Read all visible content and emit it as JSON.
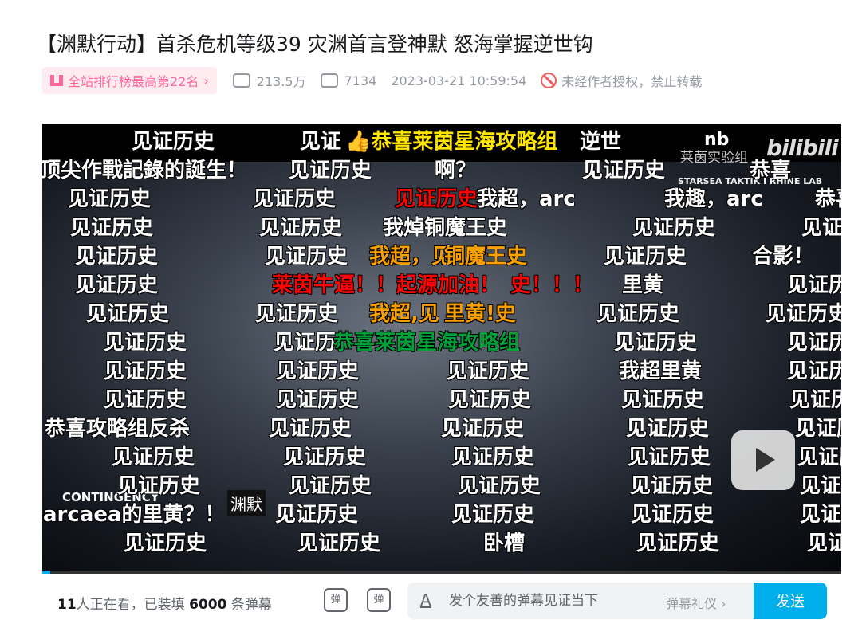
{
  "title": "【渊默行动】首杀危机等级39 灾渊首言登神默 怒海掌握逆世钩",
  "meta": {
    "rank": "全站排行榜最高第22名",
    "views": "213.5万",
    "danmaku_count": "7134",
    "date": "2023-03-21 10:59:54",
    "copyright": "未经作者授权，禁止转载",
    "icons": [
      "chart-icon",
      "play-count-icon",
      "danmaku-icon",
      "forbidden-icon"
    ]
  },
  "video": {
    "overlay": {
      "logo_text": "莱茵实验组",
      "brand": "bilibili",
      "subtitle": "STARSEA TAKTIK I RHINE LAB",
      "nb": "nb",
      "contingency": "CONTINGENCY",
      "yuanmo": "渊默"
    },
    "progress_percent": 1,
    "accent": "#00aeec"
  },
  "danmaku": [
    [
      {
        "t": "见证历史",
        "c": "#fff"
      },
      {
        "t": "见证",
        "c": "#fff"
      },
      {
        "t": "👍恭喜莱茵星海攻略组",
        "c": "#ffe600"
      },
      {
        "t": "逆世",
        "c": "#fff"
      }
    ],
    [
      {
        "t": "顶尖作戰記錄的誕生！",
        "c": "#fff"
      },
      {
        "t": "见证历史",
        "c": "#fff"
      },
      {
        "t": "啊？",
        "c": "#fff"
      },
      {
        "t": "见证历史",
        "c": "#fff"
      },
      {
        "t": "恭喜",
        "c": "#fff"
      }
    ],
    [
      {
        "t": "见证历史",
        "c": "#fff"
      },
      {
        "t": "见证历史",
        "c": "#fff"
      },
      {
        "t": "我超，arc",
        "c": "#fff"
      },
      {
        "t": "见证历史",
        "c": "#fe0302"
      },
      {
        "t": "我趣，arc",
        "c": "#fff"
      },
      {
        "t": "恭喜",
        "c": "#fff"
      }
    ],
    [
      {
        "t": "见证历史",
        "c": "#fff"
      },
      {
        "t": "见证历史",
        "c": "#fff"
      },
      {
        "t": "我焯铜魔王史",
        "c": "#fff"
      },
      {
        "t": "见证历史",
        "c": "#fff"
      },
      {
        "t": "见证",
        "c": "#fff"
      }
    ],
    [
      {
        "t": "见证历史",
        "c": "#fff"
      },
      {
        "t": "见证历史",
        "c": "#fff"
      },
      {
        "t": "我超，见",
        "c": "#f7a000"
      },
      {
        "t": "铜魔王史",
        "c": "#f7a000"
      },
      {
        "t": "见证历史",
        "c": "#fff"
      },
      {
        "t": "合影！",
        "c": "#fff"
      }
    ],
    [
      {
        "t": "见证历史",
        "c": "#fff"
      },
      {
        "t": "莱茵牛逼！！起源加油！",
        "c": "#fe0302"
      },
      {
        "t": "史！！！",
        "c": "#fe0302"
      },
      {
        "t": "里黄",
        "c": "#fff"
      },
      {
        "t": "见证历史",
        "c": "#fff"
      }
    ],
    [
      {
        "t": "见证历史",
        "c": "#fff"
      },
      {
        "t": "见证历史",
        "c": "#fff"
      },
      {
        "t": "我超,见",
        "c": "#f7a000"
      },
      {
        "t": "里黄!史",
        "c": "#f7a000"
      },
      {
        "t": "见证历史",
        "c": "#fff"
      },
      {
        "t": "见证历史",
        "c": "#fff"
      }
    ],
    [
      {
        "t": "见证历史",
        "c": "#fff"
      },
      {
        "t": "见证历",
        "c": "#fff"
      },
      {
        "t": "恭喜莱茵星海攻略组",
        "c": "#00a03a"
      },
      {
        "t": "见证历史",
        "c": "#fff"
      },
      {
        "t": "见证历史",
        "c": "#fff"
      }
    ],
    [
      {
        "t": "见证历史",
        "c": "#fff"
      },
      {
        "t": "见证历史",
        "c": "#fff"
      },
      {
        "t": "见证历史",
        "c": "#fff"
      },
      {
        "t": "我超里黄",
        "c": "#fff"
      },
      {
        "t": "见证历史",
        "c": "#fff"
      }
    ],
    [
      {
        "t": "见证历史",
        "c": "#fff"
      },
      {
        "t": "见证历史",
        "c": "#fff"
      },
      {
        "t": "见证历史",
        "c": "#fff"
      },
      {
        "t": "见证历史",
        "c": "#fff"
      },
      {
        "t": "见证历史",
        "c": "#fff"
      }
    ],
    [
      {
        "t": "恭喜攻略组反杀",
        "c": "#fff"
      },
      {
        "t": "见证历史",
        "c": "#fff"
      },
      {
        "t": "见证历史",
        "c": "#fff"
      },
      {
        "t": "见证历史",
        "c": "#fff"
      },
      {
        "t": "见证历史",
        "c": "#fff"
      }
    ],
    [
      {
        "t": "见证历史",
        "c": "#fff"
      },
      {
        "t": "见证历史",
        "c": "#fff"
      },
      {
        "t": "见证历史",
        "c": "#fff"
      },
      {
        "t": "见证历史",
        "c": "#fff"
      },
      {
        "t": "见证历史",
        "c": "#fff"
      }
    ],
    [
      {
        "t": "见证历史",
        "c": "#fff"
      },
      {
        "t": "见证历史",
        "c": "#fff"
      },
      {
        "t": "见证历史",
        "c": "#fff"
      },
      {
        "t": "见证历史",
        "c": "#fff"
      },
      {
        "t": "见证历史",
        "c": "#fff"
      }
    ],
    [
      {
        "t": "arcaea的里黄？！",
        "c": "#fff"
      },
      {
        "t": "见证历史",
        "c": "#fff"
      },
      {
        "t": "见证历史",
        "c": "#fff"
      },
      {
        "t": "见证历史",
        "c": "#fff"
      },
      {
        "t": "见证历史",
        "c": "#fff"
      }
    ],
    [
      {
        "t": "见证历史",
        "c": "#fff"
      },
      {
        "t": "见证历史",
        "c": "#fff"
      },
      {
        "t": "卧槽",
        "c": "#fff"
      },
      {
        "t": "见证历史",
        "c": "#fff"
      },
      {
        "t": "见证历史",
        "c": "#fff"
      }
    ]
  ],
  "bottom": {
    "online_count": "11",
    "online_text": "人正在看，已装填",
    "loaded": "6000",
    "loaded_suffix": "条弹幕",
    "toggle_label": "弹",
    "settings_label": "弹",
    "input_placeholder": "发个友善的弹幕见证当下",
    "etiquette": "弹幕礼仪 ›",
    "send": "发送",
    "font_icon_label": "A"
  }
}
